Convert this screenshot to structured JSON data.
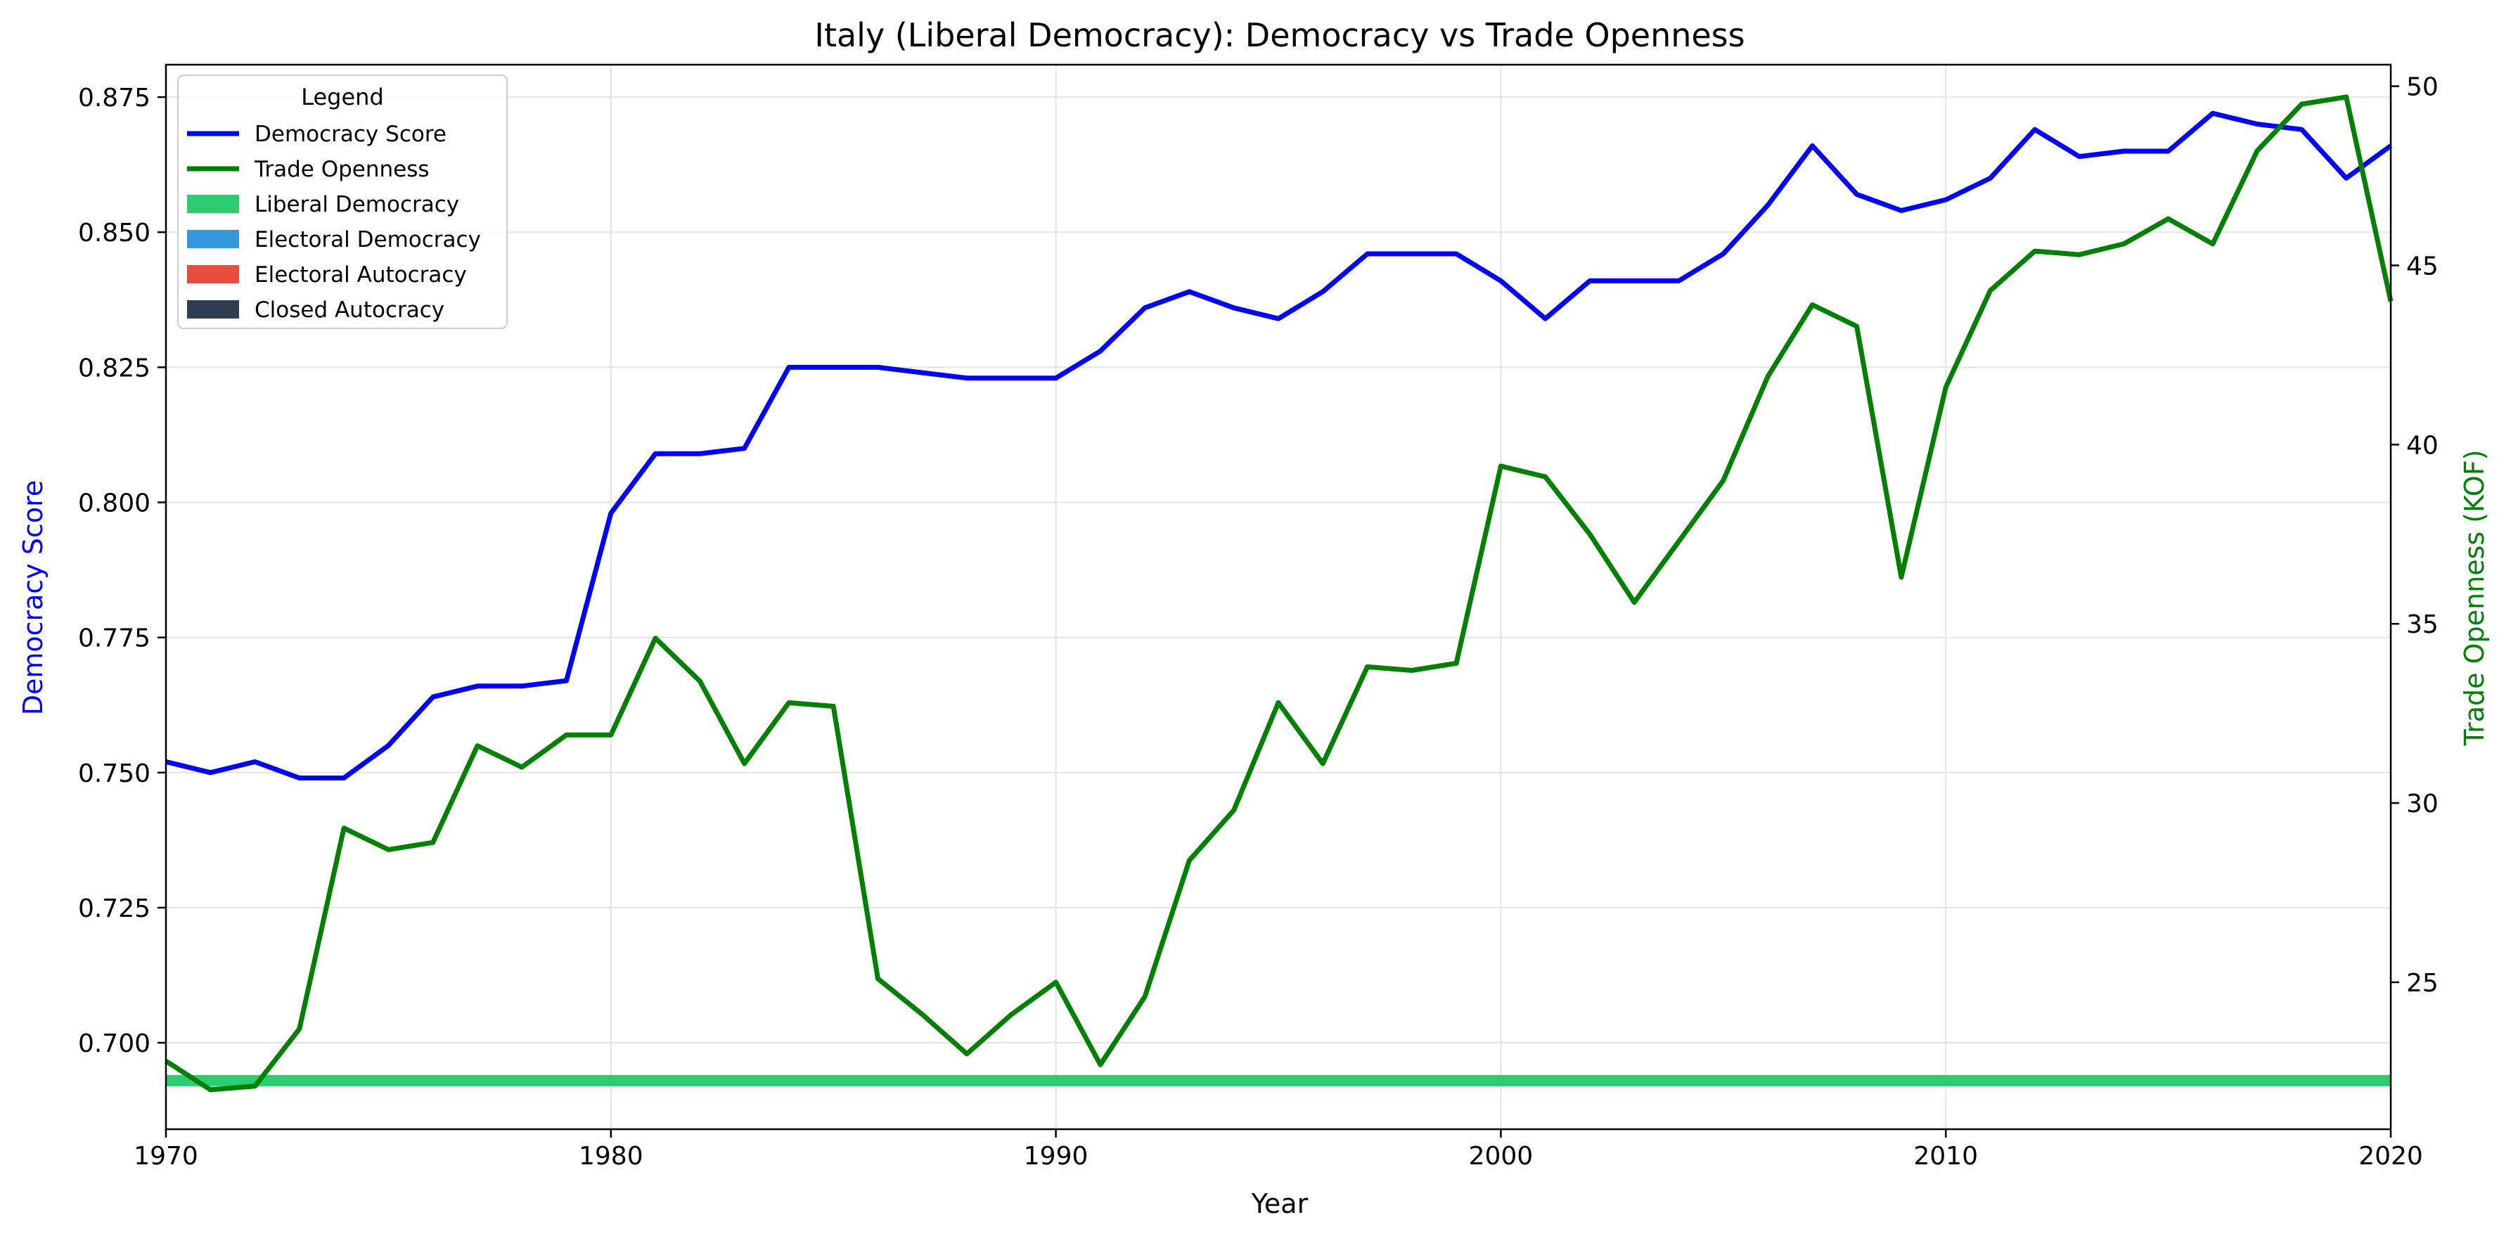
{
  "chart_data": {
    "type": "line",
    "title": "Italy (Liberal Democracy): Democracy vs Trade Openness",
    "xlabel": "Year",
    "ylabel_left": "Democracy Score",
    "ylabel_right": "Trade Openness (KOF)",
    "xlim": [
      1970,
      2020
    ],
    "ylim_left": [
      0.684,
      0.881
    ],
    "ylim_right": [
      20.9,
      50.6
    ],
    "x_ticks": [
      1970,
      1980,
      1990,
      2000,
      2010,
      2020
    ],
    "y_ticks_left": [
      0.7,
      0.725,
      0.75,
      0.775,
      0.8,
      0.825,
      0.85,
      0.875
    ],
    "y_ticks_right": [
      25,
      30,
      35,
      40,
      45,
      50
    ],
    "grid": true,
    "legend": {
      "title": "Legend",
      "position": "top-left",
      "entries": [
        {
          "label": "Democracy Score",
          "kind": "line",
          "color": "#0000ff"
        },
        {
          "label": "Trade Openness",
          "kind": "line",
          "color": "#008000"
        },
        {
          "label": "Liberal Democracy",
          "kind": "patch",
          "color": "#2ecc71"
        },
        {
          "label": "Electoral Democracy",
          "kind": "patch",
          "color": "#3498db"
        },
        {
          "label": "Electoral Autocracy",
          "kind": "patch",
          "color": "#e74c3c"
        },
        {
          "label": "Closed Autocracy",
          "kind": "patch",
          "color": "#2c3e50"
        }
      ]
    },
    "regime_band": {
      "label": "Liberal Democracy",
      "color": "#2ecc71",
      "from": 1970,
      "to": 2020,
      "y_left": 0.693
    },
    "x": [
      1970,
      1971,
      1972,
      1973,
      1974,
      1975,
      1976,
      1977,
      1978,
      1979,
      1980,
      1981,
      1982,
      1983,
      1984,
      1985,
      1986,
      1987,
      1988,
      1989,
      1990,
      1991,
      1992,
      1993,
      1994,
      1995,
      1996,
      1997,
      1998,
      1999,
      2000,
      2001,
      2002,
      2003,
      2004,
      2005,
      2006,
      2007,
      2008,
      2009,
      2010,
      2011,
      2012,
      2013,
      2014,
      2015,
      2016,
      2017,
      2018,
      2019,
      2020
    ],
    "series": [
      {
        "name": "Democracy Score",
        "axis": "left",
        "color": "#0000ff",
        "values": [
          0.752,
          0.75,
          0.752,
          0.749,
          0.749,
          0.755,
          0.764,
          0.766,
          0.766,
          0.767,
          0.798,
          0.809,
          0.809,
          0.81,
          0.825,
          0.825,
          0.825,
          0.824,
          0.823,
          0.823,
          0.823,
          0.828,
          0.836,
          0.839,
          0.836,
          0.834,
          0.839,
          0.846,
          0.846,
          0.846,
          0.841,
          0.834,
          0.841,
          0.841,
          0.841,
          0.846,
          0.855,
          0.866,
          0.857,
          0.854,
          0.856,
          0.86,
          0.869,
          0.864,
          0.865,
          0.865,
          0.872,
          0.87,
          0.869,
          0.86,
          0.866
        ]
      },
      {
        "name": "Trade Openness",
        "axis": "right",
        "color": "#008000",
        "values": [
          22.8,
          22.0,
          22.1,
          23.7,
          29.3,
          28.7,
          28.9,
          31.6,
          31.0,
          31.9,
          31.9,
          34.6,
          33.4,
          31.1,
          32.8,
          32.7,
          25.1,
          24.1,
          23.0,
          24.1,
          25.0,
          22.7,
          24.6,
          28.4,
          29.8,
          32.8,
          31.1,
          33.8,
          33.7,
          33.9,
          39.4,
          39.1,
          37.5,
          35.6,
          37.3,
          39.0,
          41.9,
          43.9,
          43.3,
          36.3,
          41.6,
          44.3,
          45.4,
          45.3,
          45.6,
          46.3,
          45.6,
          48.2,
          49.5,
          49.7,
          44.0
        ]
      }
    ]
  }
}
